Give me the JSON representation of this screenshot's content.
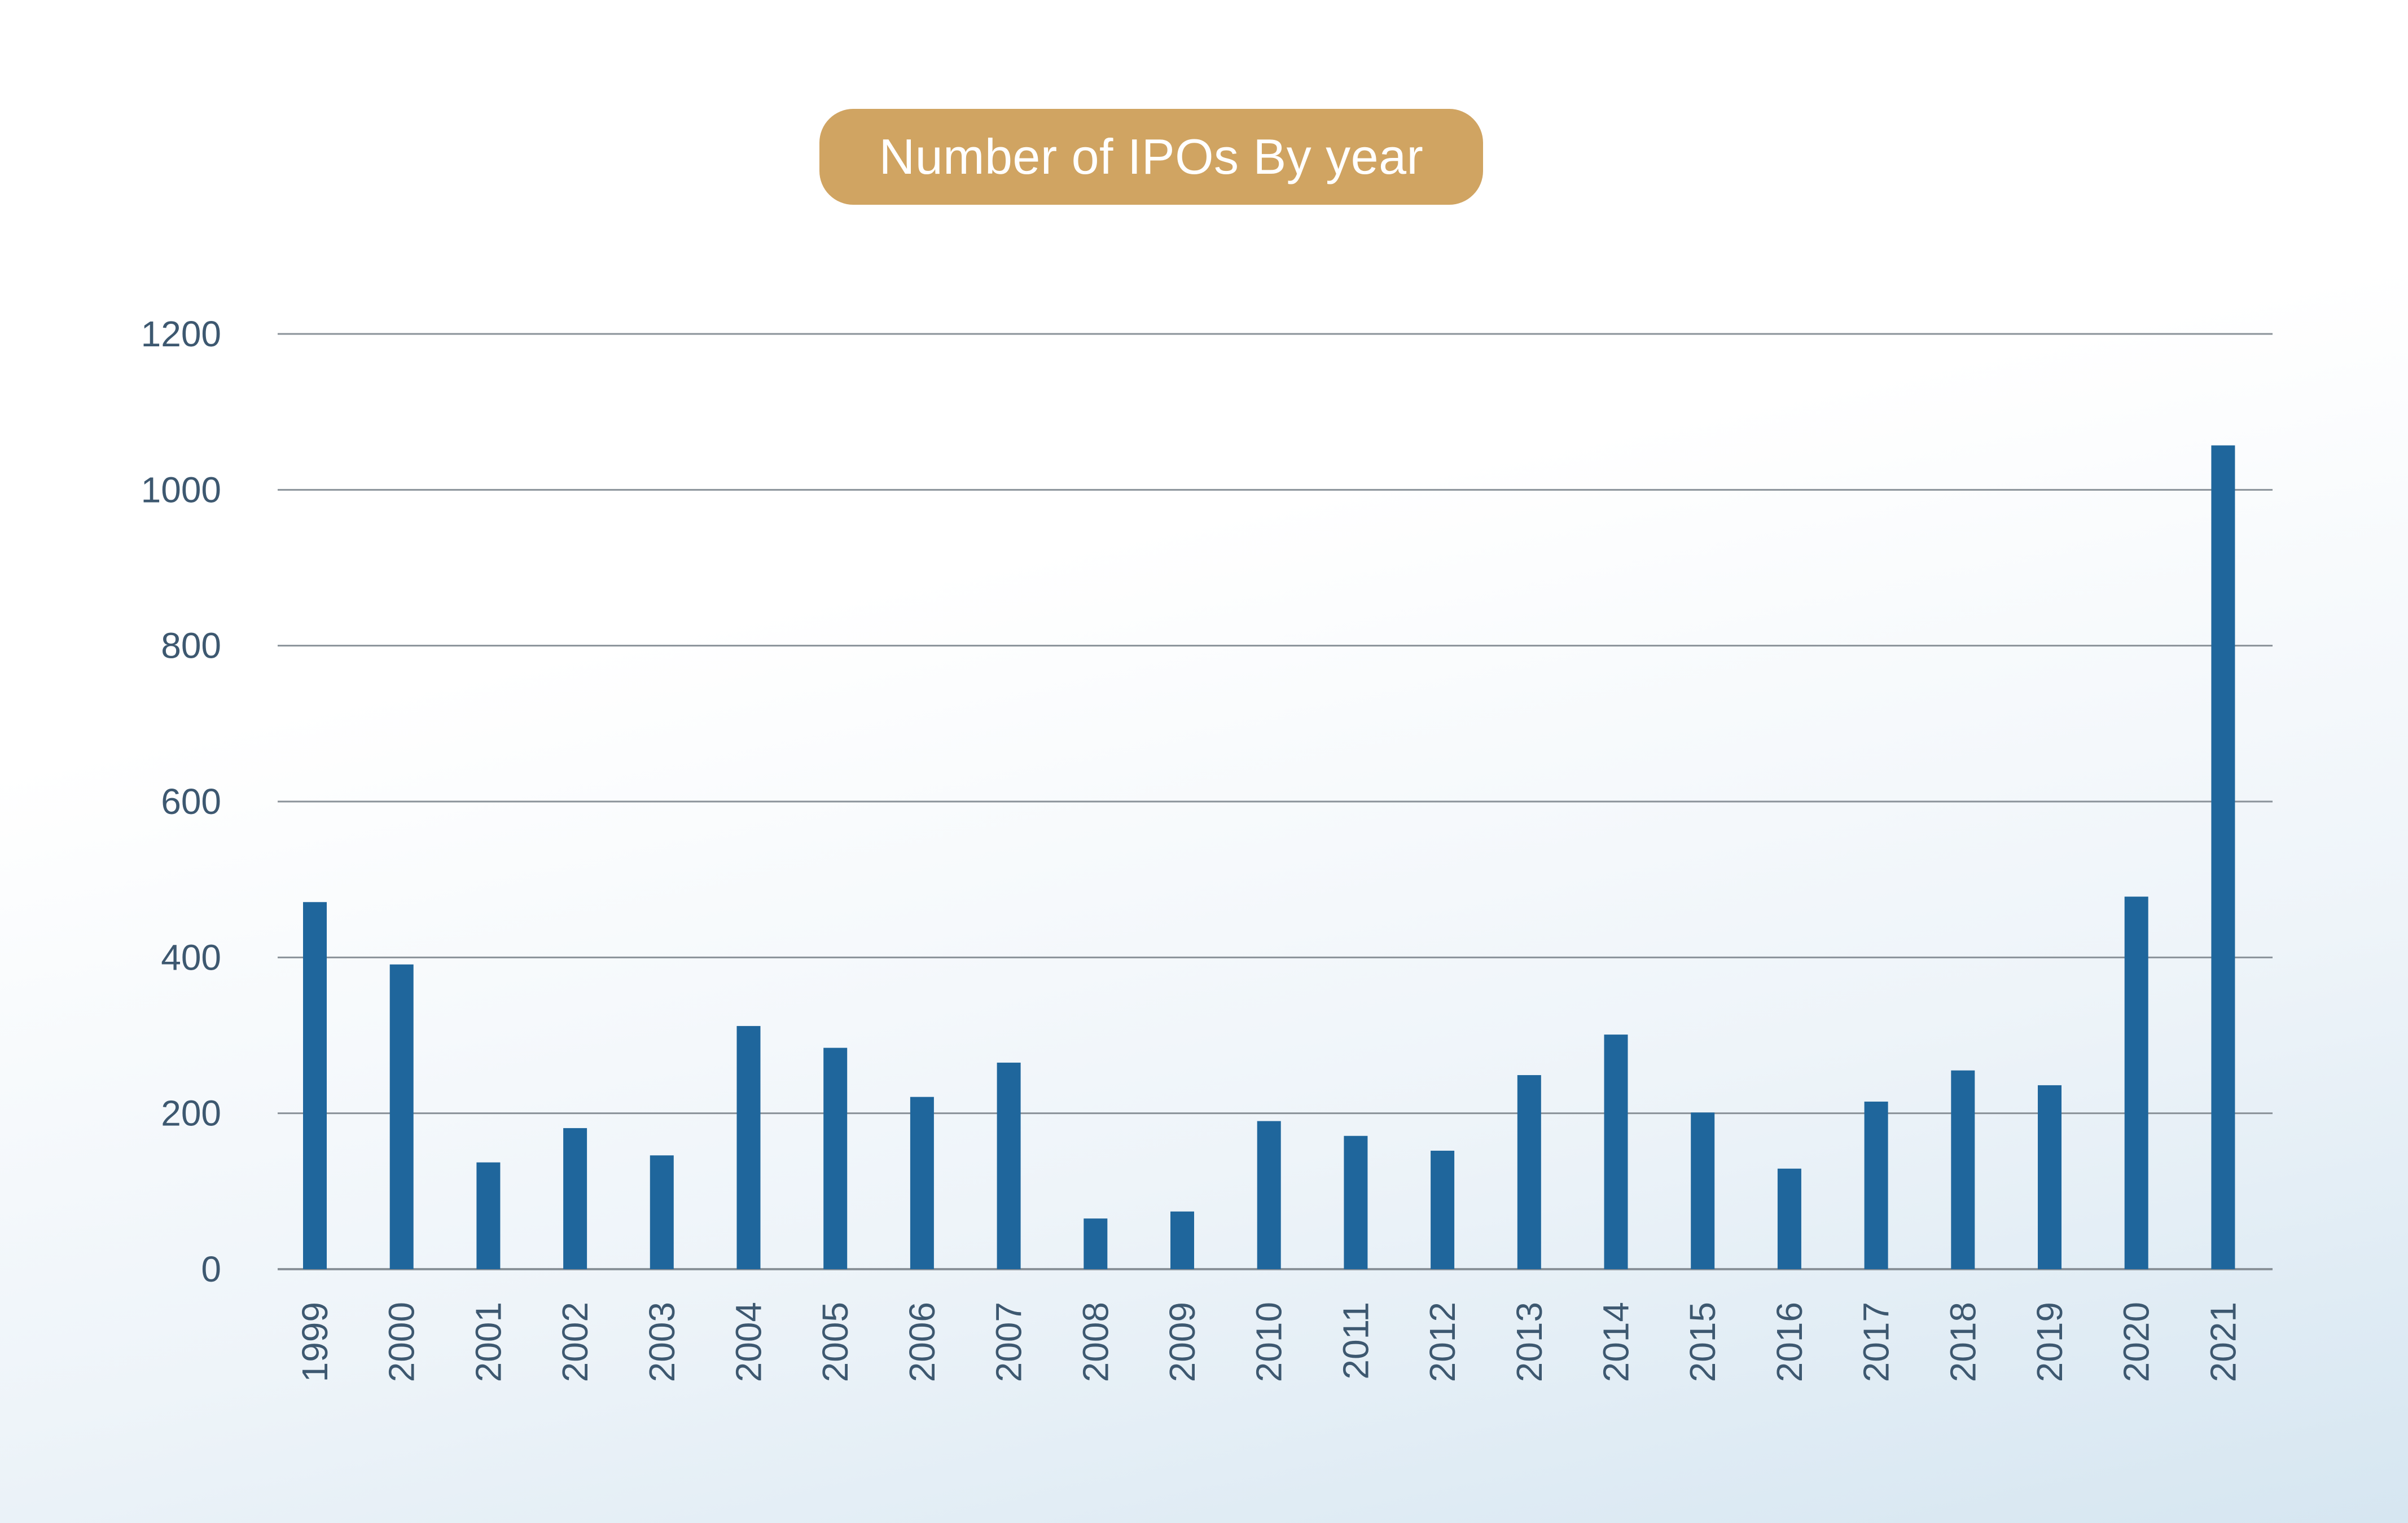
{
  "chart_data": {
    "type": "bar",
    "title": "Number of IPOs By year",
    "xlabel": "",
    "ylabel": "",
    "categories": [
      "1999",
      "2000",
      "2001",
      "2002",
      "2003",
      "2004",
      "2005",
      "2006",
      "2007",
      "2008",
      "2009",
      "2010",
      "2011",
      "2012",
      "2013",
      "2014",
      "2015",
      "2016",
      "2017",
      "2018",
      "2019",
      "2020",
      "2021"
    ],
    "values": [
      471,
      391,
      137,
      181,
      146,
      312,
      284,
      221,
      265,
      65,
      74,
      190,
      171,
      152,
      249,
      301,
      201,
      129,
      215,
      255,
      236,
      478,
      1057
    ],
    "ylim": [
      0,
      1200
    ],
    "yticks": [
      0,
      200,
      400,
      600,
      800,
      1000,
      1200
    ],
    "grid": true,
    "legend": "none",
    "colors": {
      "bar": "#1f669c",
      "grid": "#8a9299",
      "title_bg": "#d0a462",
      "title_text": "#ffffff",
      "tick_text": "#3d5870"
    }
  }
}
